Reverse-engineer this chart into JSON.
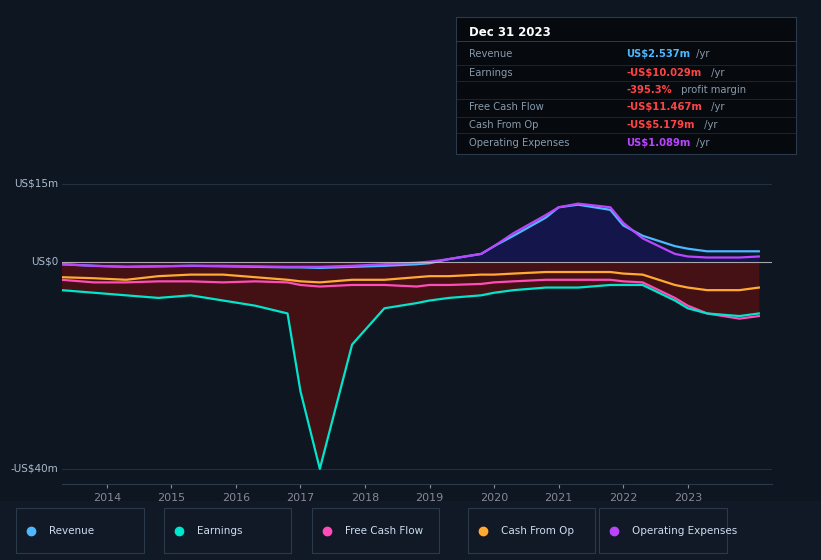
{
  "background_color": "#0e1621",
  "plot_bg_color": "#0e1621",
  "grid_color": "#1e2d3d",
  "ylabel_top": "US$15m",
  "ylabel_zero": "US$0",
  "ylabel_bottom": "-US$40m",
  "ylim": [
    -43,
    17
  ],
  "xlim": [
    2013.3,
    2024.3
  ],
  "xticks": [
    2014,
    2015,
    2016,
    2017,
    2018,
    2019,
    2020,
    2021,
    2022,
    2023
  ],
  "legend": [
    {
      "label": "Revenue",
      "color": "#4db8ff"
    },
    {
      "label": "Earnings",
      "color": "#00e5cc"
    },
    {
      "label": "Free Cash Flow",
      "color": "#ff4db8"
    },
    {
      "label": "Cash From Op",
      "color": "#ffaa33"
    },
    {
      "label": "Operating Expenses",
      "color": "#bb44ff"
    }
  ],
  "series": {
    "years": [
      2013.3,
      2013.8,
      2014.3,
      2014.8,
      2015.3,
      2015.8,
      2016.3,
      2016.8,
      2017.0,
      2017.3,
      2017.8,
      2018.3,
      2018.8,
      2019.0,
      2019.3,
      2019.8,
      2020.0,
      2020.3,
      2020.8,
      2021.0,
      2021.3,
      2021.8,
      2022.0,
      2022.3,
      2022.8,
      2023.0,
      2023.3,
      2023.8,
      2024.1
    ],
    "revenue": [
      -0.5,
      -0.8,
      -1.0,
      -0.9,
      -0.8,
      -0.9,
      -1.0,
      -1.1,
      -1.1,
      -1.2,
      -1.0,
      -0.8,
      -0.5,
      -0.3,
      0.5,
      1.5,
      3.0,
      5.0,
      8.5,
      10.5,
      11.0,
      10.0,
      7.0,
      5.0,
      3.0,
      2.5,
      2.0,
      2.0,
      2.0
    ],
    "earnings": [
      -5.5,
      -6.0,
      -6.5,
      -7.0,
      -6.5,
      -7.5,
      -8.5,
      -10.0,
      -25.0,
      -40.0,
      -16.0,
      -9.0,
      -8.0,
      -7.5,
      -7.0,
      -6.5,
      -6.0,
      -5.5,
      -5.0,
      -5.0,
      -5.0,
      -4.5,
      -4.5,
      -4.5,
      -7.5,
      -9.0,
      -10.0,
      -10.5,
      -10.0
    ],
    "free_cash_flow": [
      -3.5,
      -4.0,
      -4.0,
      -3.8,
      -3.8,
      -4.0,
      -3.8,
      -4.0,
      -4.5,
      -4.8,
      -4.5,
      -4.5,
      -4.8,
      -4.5,
      -4.5,
      -4.3,
      -4.0,
      -3.8,
      -3.5,
      -3.5,
      -3.5,
      -3.5,
      -3.8,
      -4.0,
      -7.0,
      -8.5,
      -10.0,
      -11.0,
      -10.5
    ],
    "cash_from_op": [
      -3.0,
      -3.2,
      -3.5,
      -2.8,
      -2.5,
      -2.5,
      -3.0,
      -3.5,
      -3.8,
      -4.0,
      -3.5,
      -3.5,
      -3.0,
      -2.8,
      -2.8,
      -2.5,
      -2.5,
      -2.3,
      -2.0,
      -2.0,
      -2.0,
      -2.0,
      -2.3,
      -2.5,
      -4.5,
      -5.0,
      -5.5,
      -5.5,
      -5.0
    ],
    "op_expenses": [
      -0.5,
      -0.8,
      -1.0,
      -0.9,
      -0.8,
      -0.8,
      -0.9,
      -1.0,
      -1.0,
      -1.0,
      -0.8,
      -0.5,
      -0.2,
      0.0,
      0.5,
      1.5,
      3.0,
      5.5,
      9.0,
      10.5,
      11.2,
      10.5,
      7.5,
      4.5,
      1.5,
      1.0,
      0.8,
      0.8,
      1.0
    ]
  }
}
